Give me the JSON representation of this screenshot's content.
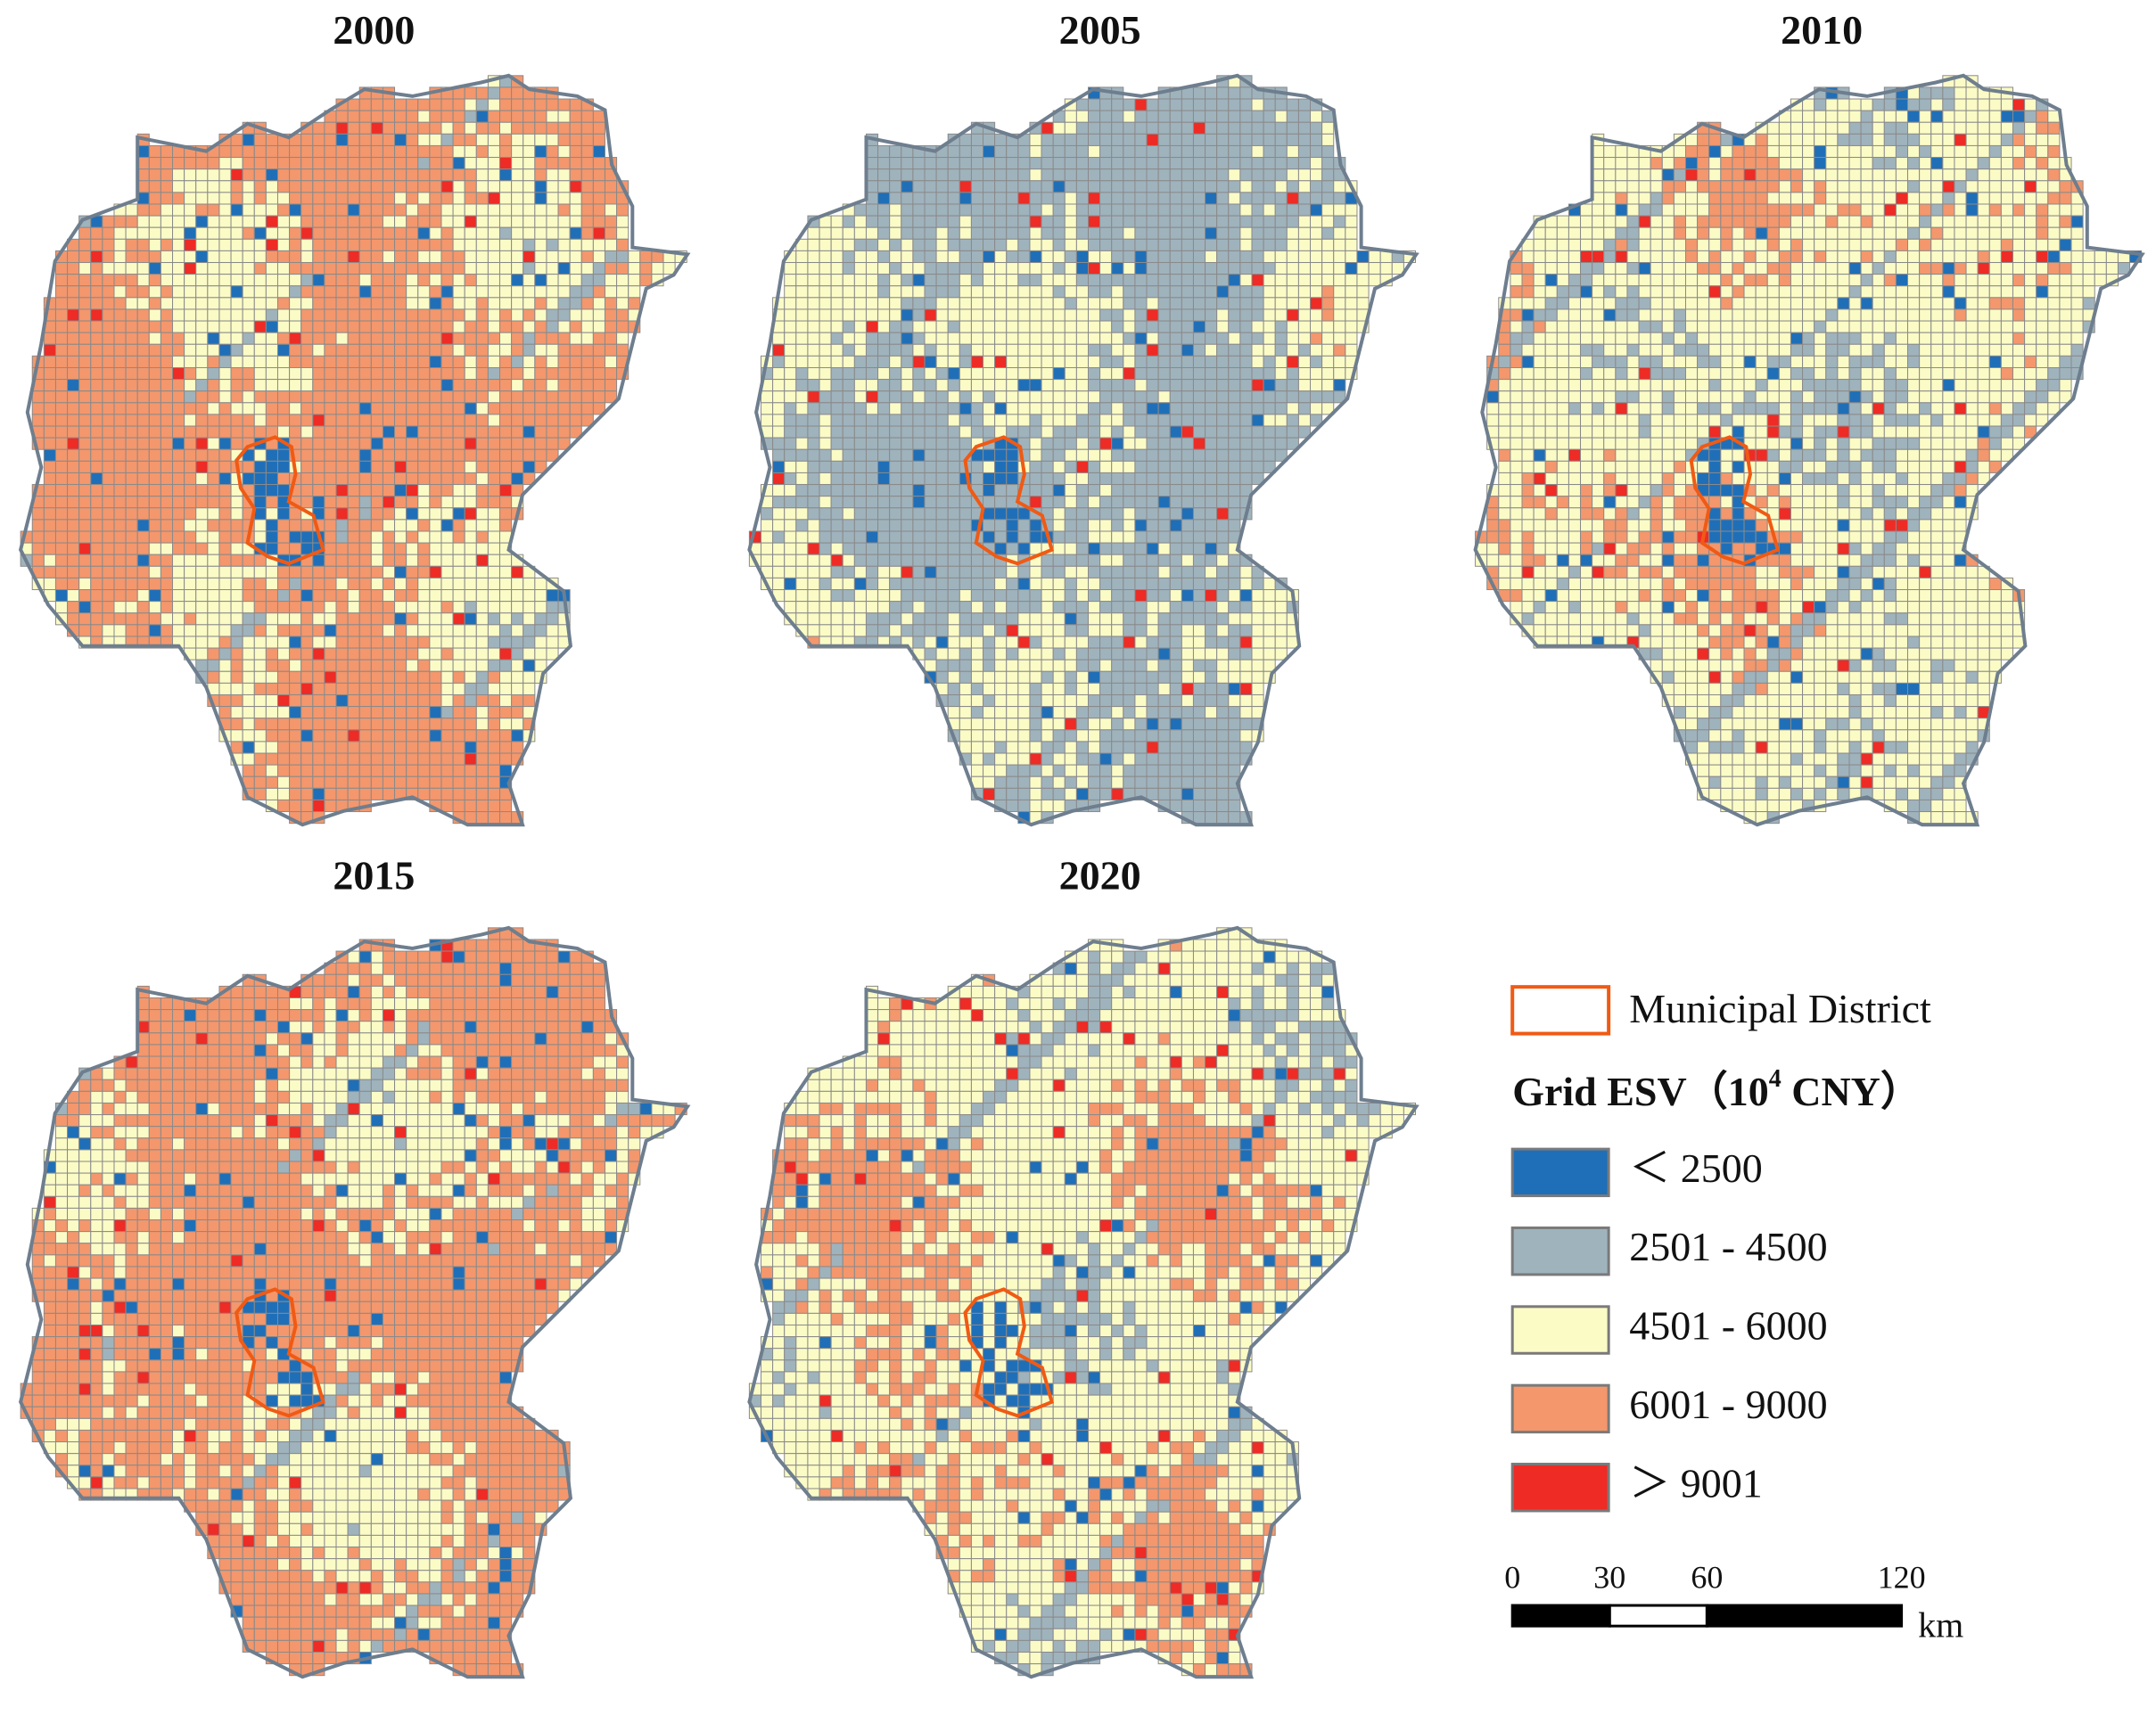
{
  "panels": [
    {
      "title": "2000"
    },
    {
      "title": "2005"
    },
    {
      "title": "2010"
    },
    {
      "title": "2015"
    },
    {
      "title": "2020"
    }
  ],
  "legend": {
    "boundary": "Municipal District",
    "title": "Grid ESV（10",
    "title_sup": "4",
    "title_end": " CNY）",
    "classes": [
      {
        "label": "＜ 2500",
        "color": "#1f6fb8"
      },
      {
        "label": "2501 - 4500",
        "color": "#9fb3bd"
      },
      {
        "label": "4501 - 6000",
        "color": "#fbfbc6"
      },
      {
        "label": "6001 - 9000",
        "color": "#f4976c"
      },
      {
        "label": "＞ 9001",
        "color": "#ee2b25"
      }
    ]
  },
  "scale_bar": {
    "ticks": [
      0,
      30,
      60,
      120
    ],
    "unit": "km"
  }
}
